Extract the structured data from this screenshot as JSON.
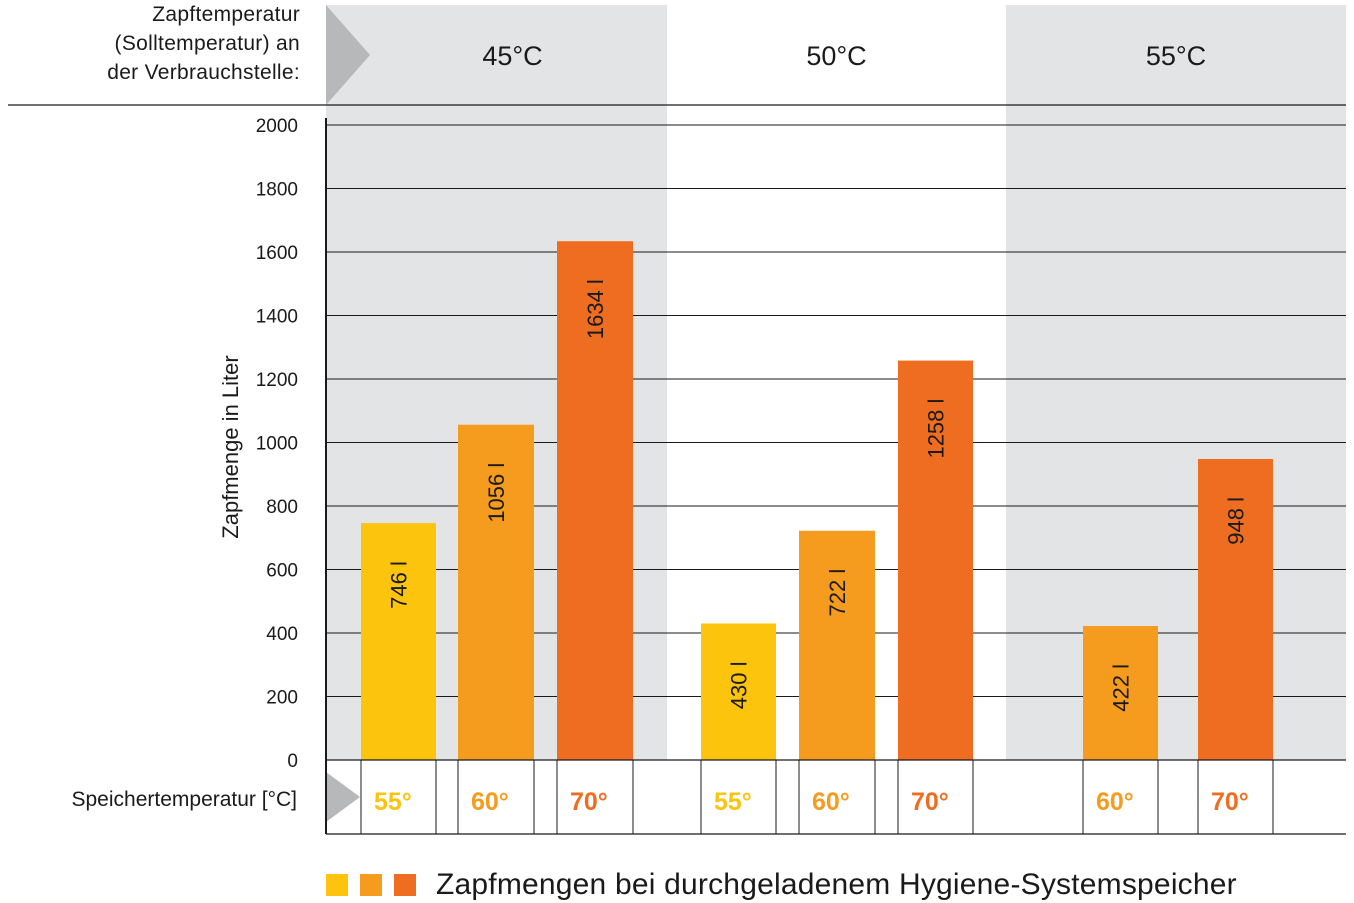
{
  "header": {
    "label_lines": [
      "Zapftemperatur",
      "(Solltemperatur) an",
      "der Verbrauchstelle:"
    ]
  },
  "chart_data": {
    "type": "bar",
    "ylabel": "Zapfmenge in Liter",
    "ylim": [
      0,
      2000
    ],
    "yticks": [
      0,
      200,
      400,
      600,
      800,
      1000,
      1200,
      1400,
      1600,
      1800,
      2000
    ],
    "grid": true,
    "groups": [
      {
        "label": "45°C",
        "bars": [
          {
            "category": "55°",
            "value": 746,
            "data_label": "746 l",
            "color": "#fcc40c"
          },
          {
            "category": "60°",
            "value": 1056,
            "data_label": "1056 l",
            "color": "#f59b1d"
          },
          {
            "category": "70°",
            "value": 1634,
            "data_label": "1634 l",
            "color": "#ee6d21"
          }
        ]
      },
      {
        "label": "50°C",
        "bars": [
          {
            "category": "55°",
            "value": 430,
            "data_label": "430 l",
            "color": "#fcc40c"
          },
          {
            "category": "60°",
            "value": 722,
            "data_label": "722 l",
            "color": "#f59b1d"
          },
          {
            "category": "70°",
            "value": 1258,
            "data_label": "1258 l",
            "color": "#ee6d21"
          }
        ]
      },
      {
        "label": "55°C",
        "bars": [
          {
            "category": "60°",
            "value": 422,
            "data_label": "422 l",
            "color": "#f59b1d"
          },
          {
            "category": "70°",
            "value": 948,
            "data_label": "948 l",
            "color": "#ee6d21"
          }
        ]
      }
    ],
    "xlabel": "Speichertemperatur [°C]",
    "legend": {
      "text": "Zapfmengen bei durchgeladenem Hygiene-Systemspeicher",
      "colors": [
        "#fcc40c",
        "#f59b1d",
        "#ee6d21"
      ],
      "position": "bottom"
    }
  },
  "colors": {
    "band_shade": "#e3e4e6",
    "arrow": "#b7b8ba",
    "c55": "#fcc40c",
    "c60": "#f59b1d",
    "c70": "#ee6d21"
  }
}
